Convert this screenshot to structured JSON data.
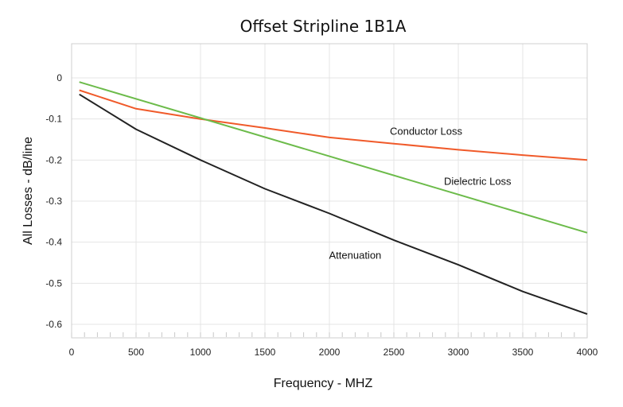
{
  "chart_data": {
    "type": "line",
    "title": "Offset Stripline 1B1A",
    "xlabel": "Frequency - MHZ",
    "ylabel": "All Losses - dB/line",
    "xlim": [
      0,
      4000
    ],
    "ylim": [
      -0.6,
      0
    ],
    "x_ticks": [
      0,
      500,
      1000,
      1500,
      2000,
      2500,
      3000,
      3500,
      4000
    ],
    "x_tick_labels": [
      "0",
      "500",
      "1000",
      "1500",
      "2000",
      "2500",
      "3000",
      "3500",
      "4000"
    ],
    "y_ticks": [
      0,
      -0.1,
      -0.2,
      -0.3,
      -0.4,
      -0.5,
      -0.6
    ],
    "y_tick_labels": [
      "0",
      "-0.1",
      "-0.2",
      "-0.3",
      "-0.4",
      "-0.5",
      "-0.6"
    ],
    "grid": true,
    "legend": "none",
    "series": [
      {
        "name": "Conductor Loss",
        "color": "#f05a2a",
        "x": [
          60,
          500,
          1000,
          1500,
          2000,
          2500,
          3000,
          3500,
          4000
        ],
        "y": [
          -0.03,
          -0.075,
          -0.1,
          -0.122,
          -0.145,
          -0.16,
          -0.175,
          -0.188,
          -0.2
        ]
      },
      {
        "name": "Dielectric Loss",
        "color": "#6cbb4a",
        "x": [
          60,
          4000
        ],
        "y": [
          -0.01,
          -0.377
        ]
      },
      {
        "name": "Attenuation",
        "color": "#222222",
        "x": [
          60,
          500,
          1000,
          1500,
          2000,
          2500,
          3000,
          3500,
          4000
        ],
        "y": [
          -0.04,
          -0.125,
          -0.2,
          -0.27,
          -0.33,
          -0.395,
          -0.455,
          -0.52,
          -0.575
        ]
      }
    ],
    "annotations": [
      {
        "text": "Conductor Loss",
        "x": 2750,
        "y": -0.138
      },
      {
        "text": "Dielectric Loss",
        "x": 3150,
        "y": -0.26
      },
      {
        "text": "Attenuation",
        "x": 2200,
        "y": -0.44
      }
    ]
  }
}
